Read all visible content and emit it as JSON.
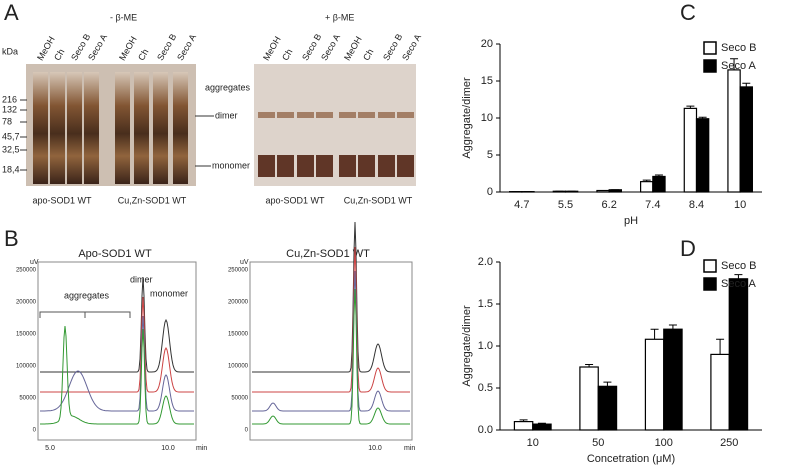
{
  "panels": {
    "a": {
      "letter": "A",
      "minus": "- β-ME",
      "plus": "+ β-ME",
      "kda": "kDa",
      "markers": [
        "216",
        "132",
        "78",
        "45,7",
        "32,5",
        "18,4"
      ],
      "lanes": [
        "MeOH",
        "Ch",
        "Seco B",
        "Seco A",
        "MeOH",
        "Ch",
        "Seco B",
        "Seco A",
        "MeOH",
        "Ch",
        "Seco B",
        "Seco A",
        "MeOH",
        "Ch",
        "Seco B",
        "Seco A"
      ],
      "aggregates": "aggregates",
      "dimer": "dimer",
      "monomer": "monomer",
      "groups": [
        "apo-SOD1 WT",
        "Cu,Zn-SOD1 WT",
        "apo-SOD1 WT",
        "Cu,Zn-SOD1 WT"
      ]
    },
    "b": {
      "letter": "B",
      "titles": [
        "Apo-SOD1 WT",
        "Cu,Zn-SOD1 WT"
      ],
      "unit": "uV",
      "yticks": [
        "250000",
        "200000",
        "150000",
        "100000",
        "50000",
        "0"
      ],
      "xticks": [
        "5.0",
        "10.0"
      ],
      "xunit": "min",
      "aggregates": "aggregates",
      "dimer": "dimer",
      "monomer": "monomer"
    }
  },
  "chart_data": [
    {
      "type": "bar",
      "panel": "C",
      "ylabel": "Aggregate/dimer",
      "xlabel": "pH",
      "categories": [
        "4.7",
        "5.5",
        "6.2",
        "7.4",
        "8.4",
        "10"
      ],
      "series": [
        {
          "name": "Seco B",
          "color": "#ffffff",
          "values": [
            0.05,
            0.1,
            0.2,
            1.4,
            11.3,
            16.5
          ],
          "errors": [
            0,
            0,
            0,
            0.2,
            0.3,
            1.5
          ]
        },
        {
          "name": "Seco A",
          "color": "#000000",
          "values": [
            0.05,
            0.1,
            0.3,
            2.1,
            9.9,
            14.2
          ],
          "errors": [
            0,
            0,
            0,
            0.2,
            0.2,
            0.5
          ]
        }
      ],
      "ylim": [
        0,
        20
      ],
      "yticks": [
        0,
        5,
        10,
        15,
        20
      ],
      "legend": "top-right"
    },
    {
      "type": "bar",
      "panel": "D",
      "ylabel": "Aggregate/dimer",
      "xlabel": "Concetration (μM)",
      "categories": [
        "10",
        "50",
        "100",
        "250"
      ],
      "series": [
        {
          "name": "Seco B",
          "color": "#ffffff",
          "values": [
            0.1,
            0.75,
            1.08,
            0.9
          ],
          "errors": [
            0.02,
            0.03,
            0.12,
            0.18
          ]
        },
        {
          "name": "Seco A",
          "color": "#000000",
          "values": [
            0.07,
            0.52,
            1.2,
            1.8
          ],
          "errors": [
            0.01,
            0.05,
            0.05,
            0.05
          ]
        }
      ],
      "ylim": [
        0,
        2
      ],
      "yticks": [
        {
          "value": 0,
          "label": "0.0"
        },
        0.5,
        {
          "value": 1,
          "label": "1.0"
        },
        1.5,
        {
          "value": 2,
          "label": "2.0"
        }
      ],
      "legend": "top-right"
    }
  ]
}
